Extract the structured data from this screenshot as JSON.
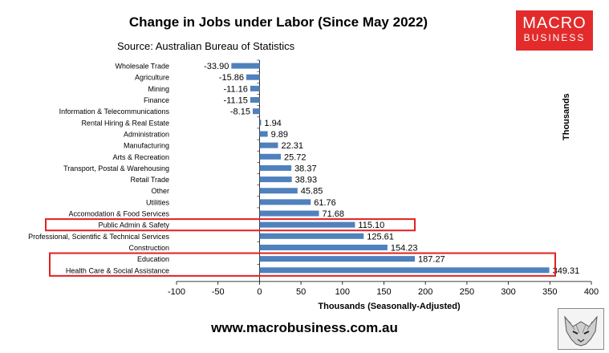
{
  "header": {
    "title": "Change in Jobs under Labor (Since May 2022)",
    "source": "Source: Australian Bureau of Statistics"
  },
  "logo": {
    "line1": "MACRO",
    "line2": "BUSINESS"
  },
  "footer": {
    "url": "www.macrobusiness.com.au"
  },
  "colors": {
    "bar": "#4f81bd",
    "highlight": "#e32020",
    "logo": "#e32b2b"
  },
  "chart_data": {
    "type": "bar",
    "orientation": "horizontal",
    "categories": [
      "Wholesale Trade",
      "Agriculture",
      "Mining",
      "Finance",
      "Information & Telecommunications",
      "Rental Hiring & Real Estate",
      "Administration",
      "Manufacturing",
      "Arts & Recreation",
      "Transport, Postal & Warehousing",
      "Retail Trade",
      "Other",
      "Utilities",
      "Accomodation & Food Services",
      "Public Admin & Safety",
      "Professional, Scientific & Technical Services",
      "Construction",
      "Education",
      "Health Care & Social Assistance"
    ],
    "values": [
      -33.9,
      -15.86,
      -11.16,
      -11.15,
      -8.15,
      1.94,
      9.89,
      22.31,
      25.72,
      38.37,
      38.93,
      45.85,
      61.76,
      71.68,
      115.1,
      125.61,
      154.23,
      187.27,
      349.31
    ],
    "value_labels": [
      "-33.90",
      "-15.86",
      "-11.16",
      "-11.15",
      "-8.15",
      "1.94",
      "9.89",
      "22.31",
      "25.72",
      "38.37",
      "38.93",
      "45.85",
      "61.76",
      "71.68",
      "115.10",
      "125.61",
      "154.23",
      "187.27",
      "349.31"
    ],
    "xlabel": "Thousands (Seasonally-Adjusted)",
    "ylabel": "Thousands",
    "xlim": [
      -100,
      400
    ],
    "xticks": [
      -100,
      -50,
      0,
      50,
      100,
      150,
      200,
      250,
      300,
      350,
      400
    ],
    "highlighted": [
      "Public Admin & Safety",
      "Education",
      "Health Care & Social Assistance"
    ],
    "grid": false
  }
}
